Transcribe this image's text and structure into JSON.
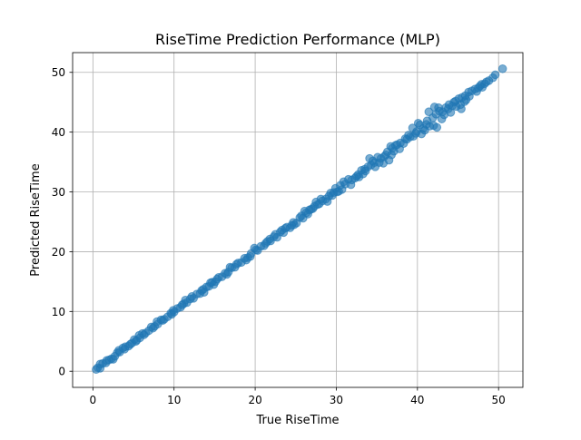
{
  "chart_data": {
    "type": "scatter",
    "title": "RiseTime Prediction Performance (MLP)",
    "xlabel": "True RiseTime",
    "ylabel": "Predicted RiseTime",
    "xlim": [
      -2.5,
      53.0
    ],
    "ylim": [
      -2.7,
      53.3
    ],
    "xticks": [
      0,
      10,
      20,
      30,
      40,
      50
    ],
    "yticks": [
      0,
      10,
      20,
      30,
      40,
      50
    ],
    "xtick_labels": [
      "0",
      "10",
      "20",
      "30",
      "40",
      "50"
    ],
    "ytick_labels": [
      "0",
      "10",
      "20",
      "30",
      "40",
      "50"
    ],
    "grid": true,
    "marker_color": "#1f77b4",
    "marker_alpha": 0.6,
    "series": [
      {
        "points": [
          [
            0.4,
            0.3
          ],
          [
            0.6,
            0.6
          ],
          [
            0.9,
            0.5
          ],
          [
            1.2,
            1.3
          ],
          [
            1.6,
            1.4
          ],
          [
            2.0,
            1.9
          ],
          [
            2.3,
            2.1
          ],
          [
            2.7,
            2.5
          ],
          [
            3.0,
            3.1
          ],
          [
            3.3,
            3.2
          ],
          [
            3.7,
            3.9
          ],
          [
            4.0,
            4.1
          ],
          [
            4.4,
            4.2
          ],
          [
            4.8,
            4.7
          ],
          [
            5.1,
            5.3
          ],
          [
            5.4,
            5.2
          ],
          [
            5.8,
            5.6
          ],
          [
            6.1,
            6.3
          ],
          [
            6.5,
            6.4
          ],
          [
            6.9,
            6.8
          ],
          [
            7.2,
            7.4
          ],
          [
            7.6,
            7.5
          ],
          [
            8.0,
            7.9
          ],
          [
            8.4,
            8.6
          ],
          [
            8.8,
            8.7
          ],
          [
            9.2,
            9.1
          ],
          [
            9.6,
            9.7
          ],
          [
            10.0,
            9.9
          ],
          [
            10.4,
            10.5
          ],
          [
            10.8,
            10.7
          ],
          [
            11.2,
            11.3
          ],
          [
            11.6,
            11.5
          ],
          [
            12.0,
            12.1
          ],
          [
            12.4,
            12.2
          ],
          [
            12.8,
            12.9
          ],
          [
            13.2,
            13.0
          ],
          [
            13.6,
            13.7
          ],
          [
            14.0,
            14.1
          ],
          [
            14.3,
            14.2
          ],
          [
            14.7,
            14.9
          ],
          [
            15.1,
            15.0
          ],
          [
            15.5,
            15.7
          ],
          [
            15.9,
            15.8
          ],
          [
            16.3,
            16.4
          ],
          [
            16.7,
            16.6
          ],
          [
            17.1,
            17.3
          ],
          [
            17.5,
            17.4
          ],
          [
            17.9,
            18.1
          ],
          [
            18.3,
            18.2
          ],
          [
            18.7,
            18.9
          ],
          [
            19.1,
            19.0
          ],
          [
            19.5,
            19.7
          ],
          [
            19.9,
            20.6
          ],
          [
            20.3,
            20.2
          ],
          [
            20.7,
            20.9
          ],
          [
            21.1,
            21.0
          ],
          [
            21.5,
            21.7
          ],
          [
            21.9,
            21.8
          ],
          [
            22.3,
            22.5
          ],
          [
            22.7,
            22.4
          ],
          [
            23.1,
            23.3
          ],
          [
            23.5,
            23.2
          ],
          [
            23.9,
            24.1
          ],
          [
            24.3,
            24.0
          ],
          [
            24.7,
            24.9
          ],
          [
            25.1,
            24.8
          ],
          [
            25.5,
            25.7
          ],
          [
            25.9,
            25.6
          ],
          [
            26.3,
            26.5
          ],
          [
            26.7,
            27.0
          ],
          [
            27.1,
            27.2
          ],
          [
            27.5,
            28.3
          ],
          [
            27.9,
            28.0
          ],
          [
            28.3,
            28.5
          ],
          [
            28.7,
            28.8
          ],
          [
            29.1,
            29.3
          ],
          [
            29.5,
            29.4
          ],
          [
            29.9,
            30.6
          ],
          [
            30.3,
            30.1
          ],
          [
            30.7,
            30.4
          ],
          [
            31.1,
            31.3
          ],
          [
            31.5,
            32.1
          ],
          [
            31.9,
            32.0
          ],
          [
            32.3,
            32.3
          ],
          [
            32.7,
            32.9
          ],
          [
            33.1,
            33.6
          ],
          [
            33.5,
            33.8
          ],
          [
            33.9,
            34.2
          ],
          [
            34.3,
            34.5
          ],
          [
            34.7,
            34.9
          ],
          [
            35.1,
            35.8
          ],
          [
            35.5,
            35.6
          ],
          [
            35.9,
            35.9
          ],
          [
            36.3,
            36.7
          ],
          [
            36.7,
            37.6
          ],
          [
            37.1,
            36.8
          ],
          [
            37.5,
            37.9
          ],
          [
            37.9,
            38.2
          ],
          [
            38.3,
            38.1
          ],
          [
            38.7,
            38.8
          ],
          [
            39.1,
            39.2
          ],
          [
            39.5,
            39.3
          ],
          [
            39.9,
            40.1
          ],
          [
            40.3,
            41.2
          ],
          [
            40.7,
            40.6
          ],
          [
            41.1,
            41.3
          ],
          [
            41.5,
            41.0
          ],
          [
            41.9,
            42.4
          ],
          [
            42.3,
            43.0
          ],
          [
            42.7,
            43.5
          ],
          [
            43.1,
            43.4
          ],
          [
            43.5,
            44.1
          ],
          [
            43.9,
            44.6
          ],
          [
            44.3,
            44.4
          ],
          [
            44.7,
            45.2
          ],
          [
            45.1,
            45.6
          ],
          [
            45.5,
            45.8
          ],
          [
            45.9,
            46.1
          ],
          [
            46.3,
            46.7
          ],
          [
            46.7,
            46.9
          ],
          [
            47.1,
            47.2
          ],
          [
            47.5,
            47.4
          ],
          [
            47.9,
            48.0
          ],
          [
            48.3,
            48.1
          ],
          [
            49.6,
            49.6
          ],
          [
            50.5,
            50.6
          ],
          [
            0.9,
            1.2
          ],
          [
            2.5,
            2.0
          ],
          [
            4.6,
            4.5
          ],
          [
            5.7,
            6.0
          ],
          [
            7.9,
            8.3
          ],
          [
            9.7,
            9.5
          ],
          [
            11.4,
            11.9
          ],
          [
            13.7,
            13.2
          ],
          [
            14.9,
            14.5
          ],
          [
            16.9,
            17.4
          ],
          [
            19.4,
            19.2
          ],
          [
            21.8,
            22.1
          ],
          [
            23.3,
            23.6
          ],
          [
            24.8,
            24.5
          ],
          [
            26.1,
            26.8
          ],
          [
            28.9,
            28.4
          ],
          [
            30.5,
            31.1
          ],
          [
            31.8,
            31.2
          ],
          [
            33.3,
            33.0
          ],
          [
            34.1,
            35.6
          ],
          [
            35.3,
            34.9
          ],
          [
            36.1,
            36.2
          ],
          [
            36.9,
            37.3
          ],
          [
            37.8,
            37.2
          ],
          [
            38.9,
            39.5
          ],
          [
            40.1,
            41.5
          ],
          [
            40.5,
            39.7
          ],
          [
            41.2,
            41.9
          ],
          [
            42.0,
            41.1
          ],
          [
            42.4,
            40.8
          ],
          [
            43.0,
            42.2
          ],
          [
            43.3,
            42.9
          ],
          [
            43.8,
            43.9
          ],
          [
            44.1,
            43.3
          ],
          [
            44.8,
            44.3
          ],
          [
            45.3,
            44.6
          ],
          [
            45.4,
            43.9
          ],
          [
            45.8,
            45.1
          ],
          [
            46.4,
            46.0
          ],
          [
            47.3,
            46.8
          ],
          [
            48.0,
            47.5
          ],
          [
            48.5,
            48.4
          ],
          [
            49.3,
            49.1
          ],
          [
            42.1,
            44.2
          ],
          [
            41.4,
            43.4
          ],
          [
            39.4,
            40.7
          ],
          [
            38.5,
            38.9
          ],
          [
            34.5,
            35.2
          ],
          [
            36.8,
            36.2
          ],
          [
            35.8,
            34.8
          ],
          [
            33.6,
            33.5
          ],
          [
            32.8,
            32.5
          ],
          [
            30.9,
            31.7
          ],
          [
            29.7,
            29.9
          ],
          [
            28.1,
            28.8
          ],
          [
            27.3,
            27.6
          ],
          [
            26.5,
            26.3
          ],
          [
            25.7,
            26.0
          ],
          [
            24.5,
            24.4
          ],
          [
            23.7,
            23.9
          ],
          [
            22.5,
            22.9
          ],
          [
            21.3,
            21.4
          ],
          [
            20.1,
            20.3
          ],
          [
            18.9,
            18.6
          ],
          [
            17.7,
            17.9
          ],
          [
            16.5,
            16.2
          ],
          [
            15.3,
            15.4
          ],
          [
            14.5,
            14.8
          ],
          [
            13.4,
            13.5
          ],
          [
            12.2,
            12.5
          ],
          [
            11.0,
            11.1
          ],
          [
            9.9,
            10.2
          ],
          [
            8.6,
            8.5
          ],
          [
            7.4,
            7.2
          ],
          [
            6.3,
            6.1
          ],
          [
            5.3,
            5.0
          ],
          [
            3.9,
            3.7
          ],
          [
            3.2,
            3.5
          ],
          [
            1.7,
            1.8
          ],
          [
            42.6,
            44.1
          ],
          [
            44.5,
            45.0
          ],
          [
            46.0,
            45.4
          ],
          [
            47.7,
            47.7
          ],
          [
            48.8,
            48.6
          ],
          [
            40.9,
            40.3
          ],
          [
            39.8,
            39.8
          ],
          [
            37.3,
            37.8
          ],
          [
            36.5,
            35.3
          ],
          [
            34.8,
            34.2
          ],
          [
            32.5,
            32.6
          ],
          [
            30.1,
            30.0
          ],
          [
            29.3,
            29.8
          ],
          [
            27.7,
            27.9
          ],
          [
            26.9,
            27.1
          ]
        ]
      }
    ]
  }
}
